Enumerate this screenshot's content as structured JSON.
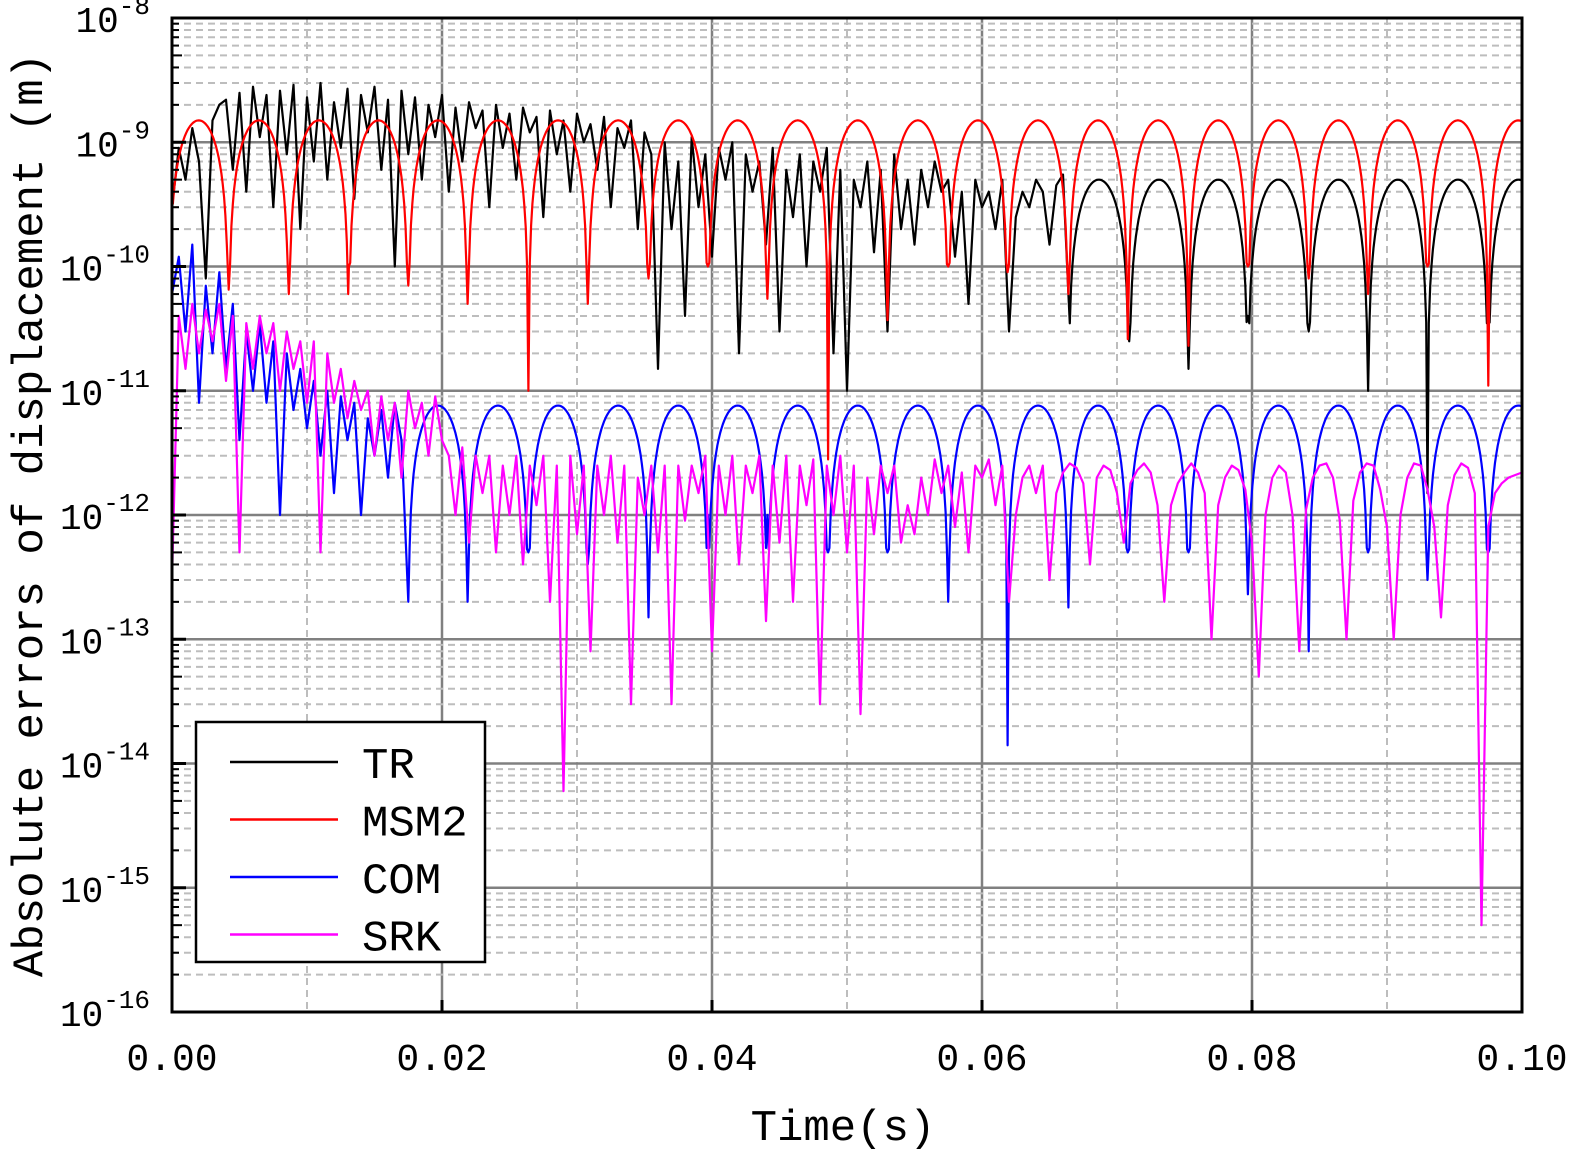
{
  "chart_data": {
    "type": "line",
    "title": "",
    "xlabel": "Time(s)",
    "ylabel": "Absolute errors of displacement (m)",
    "xlim": [
      0,
      0.1
    ],
    "ylim": [
      1e-16,
      1e-08
    ],
    "yscale": "log",
    "grid": true,
    "legend_placement": "bottom-left",
    "x_ticks": [
      0,
      0.02,
      0.04,
      0.06,
      0.08,
      0.1
    ],
    "x_tick_labels": [
      "0.00",
      "0.02",
      "0.04",
      "0.06",
      "0.08",
      "0.10"
    ],
    "y_tick_exponents": [
      "-8",
      "-9",
      "-10",
      "-11",
      "-12",
      "-13",
      "-14",
      "-15",
      "-16"
    ],
    "y_tick_base": "10",
    "series": [
      {
        "name": "TR",
        "color": "#000000",
        "x_start": 0,
        "x_step": 0.0005,
        "y": [
          3e-10,
          9e-10,
          5e-10,
          1.3e-09,
          7e-10,
          8e-11,
          1.5e-09,
          2e-09,
          2.2e-09,
          6e-10,
          2.5e-09,
          4e-10,
          2.8e-09,
          1.1e-09,
          2.4e-09,
          3e-10,
          2.6e-09,
          8e-10,
          2.9e-09,
          2e-10,
          2.3e-09,
          7e-10,
          3e-09,
          5e-10,
          2.1e-09,
          9e-10,
          2.7e-09,
          3.5e-10,
          2.4e-09,
          1.2e-09,
          2.8e-09,
          6e-10,
          2.2e-09,
          1e-10,
          2.6e-09,
          8e-10,
          2.3e-09,
          5e-10,
          2e-09,
          1.1e-09,
          2.4e-09,
          4e-10,
          1.9e-09,
          7e-10,
          2.1e-09,
          1.3e-09,
          1.8e-09,
          3e-10,
          2e-09,
          9e-10,
          1.7e-09,
          5e-10,
          1.9e-09,
          1.2e-09,
          1.6e-09,
          2.5e-10,
          1.8e-09,
          8e-10,
          1.5e-09,
          4e-10,
          1.7e-09,
          1e-09,
          1.4e-09,
          6e-10,
          1.6e-09,
          3e-10,
          1.3e-09,
          9e-10,
          1.5e-09,
          2e-10,
          1.2e-09,
          8e-10,
          1.5e-11,
          1e-09,
          2e-10,
          7e-10,
          4e-11,
          1.1e-09,
          3e-10,
          8e-10,
          1.2e-10,
          9e-10,
          5e-10,
          1e-09,
          2e-11,
          8e-10,
          4e-10,
          7e-10,
          1.5e-10,
          9e-10,
          3e-11,
          6e-10,
          2.5e-10,
          8e-10,
          1e-10,
          7e-10,
          4e-10,
          9e-10,
          2e-11,
          6e-10,
          1e-11,
          5e-10,
          3e-10,
          7e-10,
          1.3e-10,
          6e-10,
          3e-11,
          8e-10,
          2e-10,
          5e-10,
          1.5e-10,
          6e-10,
          3e-10,
          7e-10,
          4e-10,
          5e-10,
          1.2e-10,
          4e-10,
          5e-11,
          5e-10,
          3e-10,
          4e-10,
          2e-10,
          5e-10,
          3e-11,
          2.5e-10,
          4e-10,
          3e-10,
          5e-10,
          4e-10,
          1.5e-10,
          4.5e-10,
          5.5e-10
        ],
        "arches": {
          "peak": 5e-10,
          "cusps_x": [
            0.0664,
            0.0709,
            0.0753,
            0.0797,
            0.0842,
            0.0886,
            0.093,
            0.0975
          ],
          "cusps_y": [
            6e-11,
            2.5e-11,
            1.5e-11,
            4e-11,
            3e-11,
            1e-11,
            1.5e-12,
            7e-11
          ]
        }
      },
      {
        "name": "MSM2",
        "color": "#ff0000",
        "arches": {
          "peak": 1.5e-09,
          "cusps_x": [
            0.0042,
            0.00865,
            0.0131,
            0.0175,
            0.0219,
            0.0264,
            0.0308,
            0.0353,
            0.0397,
            0.0441,
            0.0486,
            0.053,
            0.0575,
            0.0619,
            0.0664,
            0.0708,
            0.0753,
            0.0797,
            0.0842,
            0.0886,
            0.093,
            0.0975
          ],
          "cusps_y": [
            6.5e-11,
            6e-11,
            1e-10,
            7e-11,
            5e-11,
            1e-11,
            5e-11,
            8e-11,
            1e-10,
            5.5e-11,
            2.8e-12,
            3.7e-11,
            1e-10,
            9e-11,
            6e-11,
            2.6e-11,
            2.3e-11,
            1e-10,
            8e-11,
            6e-11,
            1e-10,
            1.1e-11
          ]
        }
      },
      {
        "name": "COM",
        "color": "#0000ff",
        "x_start": 0,
        "x_step": 0.0005,
        "y": [
          6e-11,
          1.2e-10,
          3e-11,
          1.5e-10,
          8e-12,
          7e-11,
          2e-11,
          9e-11,
          1.5e-11,
          5e-11,
          4e-12,
          3e-11,
          1e-11,
          3.5e-11,
          8e-12,
          2.5e-11,
          1e-12,
          2e-11,
          7e-12,
          1.5e-11,
          5e-12,
          1.2e-11,
          3e-12,
          1e-11,
          1.5e-12,
          9e-12,
          4e-12,
          8e-12,
          1e-12,
          6e-12,
          3e-12,
          7e-12,
          2e-12,
          8e-12,
          4e-12,
          6e-12
        ],
        "arches": {
          "peak": 7.6e-12,
          "cusps_x": [
            0.0175,
            0.0219,
            0.0264,
            0.0308,
            0.0353,
            0.0397,
            0.0441,
            0.0486,
            0.053,
            0.0575,
            0.0619,
            0.0664,
            0.0708,
            0.0753,
            0.0797,
            0.0842,
            0.0886,
            0.093,
            0.0975
          ],
          "cusps_y": [
            2e-13,
            2e-13,
            5e-13,
            4e-13,
            1.5e-13,
            1e-12,
            1e-12,
            5e-13,
            5e-13,
            2e-13,
            1.4e-14,
            1.8e-13,
            5e-13,
            5e-13,
            2.3e-13,
            8e-14,
            5e-13,
            3e-13,
            5e-13
          ]
        }
      },
      {
        "name": "SRK",
        "color": "#ff00ff",
        "x_start": 0,
        "x_step": 0.0005,
        "y": [
          3e-13,
          4e-11,
          1.5e-11,
          5e-11,
          2e-11,
          4.5e-11,
          2.5e-11,
          5e-11,
          1.2e-11,
          4e-11,
          5e-13,
          3.5e-11,
          1.5e-11,
          4e-11,
          2e-11,
          3.5e-11,
          1e-11,
          3e-11,
          1.5e-11,
          2.5e-11,
          8e-12,
          2.5e-11,
          5e-13,
          2e-11,
          8e-12,
          1.5e-11,
          6e-12,
          1.2e-11,
          7e-12,
          1e-11,
          3e-12,
          9e-12,
          4e-12,
          8e-12,
          2e-12,
          1e-11,
          5e-12,
          8e-12,
          3e-12,
          9e-12,
          4e-12,
          3e-12,
          1e-12,
          3.5e-12,
          6e-13,
          3e-12,
          1.5e-12,
          3e-12,
          5e-13,
          2.5e-12,
          1e-12,
          3e-12,
          4e-13,
          2.5e-12,
          1.2e-12,
          3e-12,
          2e-13,
          2.5e-12,
          6e-15,
          3e-12,
          7e-13,
          2.5e-12,
          8e-14,
          2.5e-12,
          1e-12,
          3e-12,
          6e-13,
          2.5e-12,
          3e-14,
          2e-12,
          1e-12,
          2.5e-12,
          5e-13,
          2.5e-12,
          3e-14,
          2.5e-12,
          9e-13,
          2.5e-12,
          1.5e-12,
          3e-12,
          8e-14,
          2.5e-12,
          1e-12,
          3e-12,
          4e-13,
          2.5e-12,
          1.5e-12,
          3e-12,
          1.4e-13,
          2.5e-12,
          6e-13,
          3e-12,
          2e-13,
          2.5e-12,
          1.2e-12,
          2.8e-12,
          3e-14,
          2.5e-12,
          1e-12,
          3e-12,
          5e-13,
          2.5e-12,
          2.5e-14,
          2e-12,
          7e-13,
          2.5e-12,
          1.5e-12,
          2.5e-12,
          6e-13,
          1.2e-12,
          7e-13,
          2e-12,
          1e-12,
          2.8e-12,
          1.5e-12,
          2.5e-12,
          8e-13,
          2.2e-12,
          5e-13,
          2.5e-12,
          2e-12,
          2.8e-12,
          1.2e-12,
          2.5e-12,
          2e-13,
          1e-12,
          2e-12,
          2.5e-12,
          1.5e-12,
          2.5e-12,
          3e-13,
          1.5e-12,
          2.2e-12,
          2.6e-12,
          2.4e-12,
          1.8e-12,
          4e-13,
          2e-12,
          2.5e-12,
          2.3e-12,
          1.5e-12,
          6e-13,
          1.8e-12,
          2.3e-12,
          2.6e-12,
          2.2e-12,
          1.2e-12,
          2e-13,
          1.2e-12,
          1.8e-12,
          2.2e-12,
          2.6e-12,
          2.2e-12,
          1.5e-12,
          1e-13,
          1.2e-12,
          2e-12,
          2.5e-12,
          2.3e-12,
          1.6e-12,
          6e-13,
          5e-14,
          1e-12,
          2e-12,
          2.5e-12,
          2.2e-12,
          1e-12,
          8e-14,
          1.1e-12,
          2e-12,
          2.5e-12,
          2.6e-12,
          2e-12,
          9e-13,
          1e-13,
          1.3e-12,
          2.2e-12,
          2.6e-12,
          2.5e-12,
          1.6e-12,
          8e-13,
          1e-13,
          1e-12,
          2e-12,
          2.6e-12,
          2.5e-12,
          1.6e-12,
          8e-13,
          1.5e-13,
          1.2e-12,
          2.1e-12,
          2.6e-12,
          2.4e-12,
          1.5e-12,
          5e-16,
          8e-13,
          1.5e-12,
          1.8e-12,
          2e-12,
          2.1e-12,
          2.2e-12
        ]
      }
    ]
  }
}
